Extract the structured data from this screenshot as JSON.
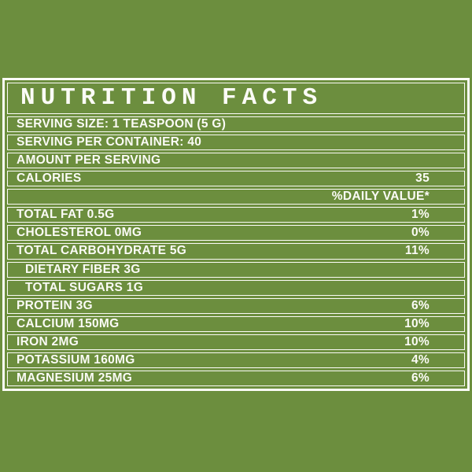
{
  "background_color": "#6c8e3e",
  "text_color": "#fbfbf6",
  "border_color": "#fbfbf6",
  "panel": {
    "title": "NUTRITION FACTS",
    "rows": [
      {
        "label": "SERVING SIZE: 1 TEASPOON (5 G)",
        "value": ""
      },
      {
        "label": "SERVING PER CONTAINER: 40",
        "value": ""
      },
      {
        "label": "AMOUNT PER SERVING",
        "value": ""
      },
      {
        "label": "CALORIES",
        "value": "35"
      },
      {
        "label": "",
        "value": "%DAILY VALUE*"
      },
      {
        "label": "TOTAL FAT 0.5G",
        "value": "1%"
      },
      {
        "label": "CHOLESTEROL 0MG",
        "value": "0%"
      },
      {
        "label": "TOTAL CARBOHYDRATE 5G",
        "value": "11%"
      },
      {
        "label": "DIETARY FIBER 3G",
        "value": "",
        "indent": true
      },
      {
        "label": "TOTAL SUGARS 1G",
        "value": "",
        "indent": true
      },
      {
        "label": "PROTEIN 3G",
        "value": "6%"
      },
      {
        "label": "CALCIUM 150MG",
        "value": "10%"
      },
      {
        "label": "IRON 2MG",
        "value": "10%"
      },
      {
        "label": "POTASSIUM 160MG",
        "value": "4%"
      },
      {
        "label": "MAGNESIUM 25MG",
        "value": "6%"
      }
    ]
  }
}
